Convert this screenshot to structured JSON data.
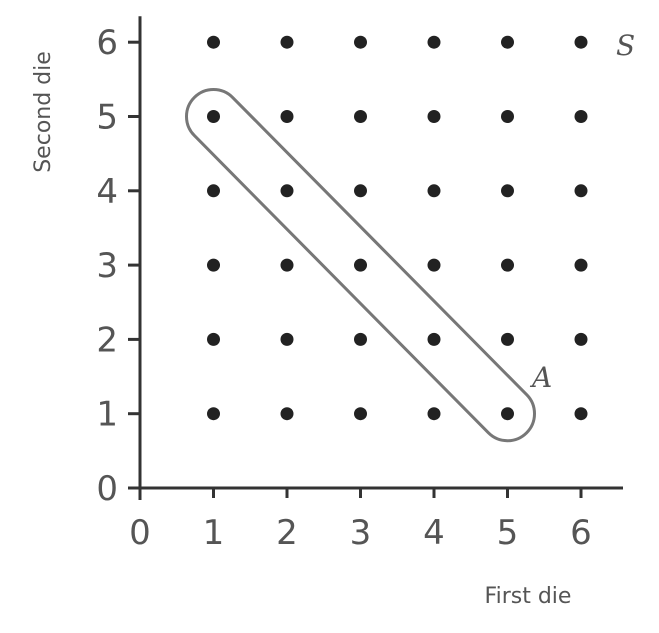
{
  "chart_data": {
    "type": "scatter",
    "xlabel": "First die",
    "ylabel": "Second die",
    "xlim": [
      0,
      6
    ],
    "ylim": [
      0,
      6
    ],
    "x_ticks": [
      0,
      1,
      2,
      3,
      4,
      5,
      6
    ],
    "y_ticks": [
      0,
      1,
      2,
      3,
      4,
      5,
      6
    ],
    "grid": false,
    "points": [
      [
        1,
        1
      ],
      [
        2,
        1
      ],
      [
        3,
        1
      ],
      [
        4,
        1
      ],
      [
        5,
        1
      ],
      [
        6,
        1
      ],
      [
        1,
        2
      ],
      [
        2,
        2
      ],
      [
        3,
        2
      ],
      [
        4,
        2
      ],
      [
        5,
        2
      ],
      [
        6,
        2
      ],
      [
        1,
        3
      ],
      [
        2,
        3
      ],
      [
        3,
        3
      ],
      [
        4,
        3
      ],
      [
        5,
        3
      ],
      [
        6,
        3
      ],
      [
        1,
        4
      ],
      [
        2,
        4
      ],
      [
        3,
        4
      ],
      [
        4,
        4
      ],
      [
        5,
        4
      ],
      [
        6,
        4
      ],
      [
        1,
        5
      ],
      [
        2,
        5
      ],
      [
        3,
        5
      ],
      [
        4,
        5
      ],
      [
        5,
        5
      ],
      [
        6,
        5
      ],
      [
        1,
        6
      ],
      [
        2,
        6
      ],
      [
        3,
        6
      ],
      [
        4,
        6
      ],
      [
        5,
        6
      ],
      [
        6,
        6
      ]
    ],
    "annotations": [
      {
        "label": "S",
        "refers_to": "sample space (all points)"
      },
      {
        "label": "A",
        "refers_to": "event enclosed by loop",
        "points": [
          [
            1,
            5
          ],
          [
            2,
            4
          ],
          [
            3,
            3
          ],
          [
            4,
            2
          ],
          [
            5,
            1
          ]
        ]
      }
    ],
    "colors": {
      "points": "#222222",
      "axis": "#333333",
      "text": "#555555",
      "loop": "#777777"
    }
  }
}
